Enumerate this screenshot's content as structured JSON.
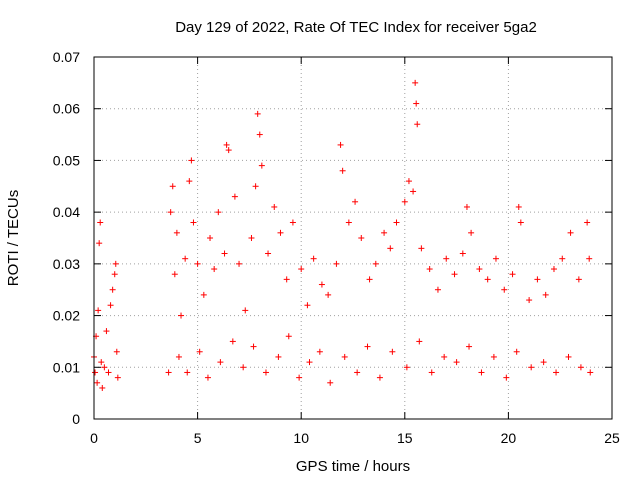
{
  "chart_data": {
    "type": "scatter",
    "title": "Day 129 of 2022, Rate Of TEC Index for receiver 5ga2",
    "xlabel": "GPS time / hours",
    "ylabel": "ROTI / TECUs",
    "xlim": [
      0,
      25
    ],
    "ylim": [
      0,
      0.07
    ],
    "x_ticks": [
      "0",
      "5",
      "10",
      "15",
      "20",
      "25"
    ],
    "y_ticks": [
      "0",
      "0.01",
      "0.02",
      "0.03",
      "0.04",
      "0.05",
      "0.06",
      "0.07"
    ],
    "grid": true,
    "marker": "+",
    "series_color": "#ff0000",
    "series": [
      {
        "data_gap_hours": [
          1.3,
          3.5
        ],
        "points": [
          [
            0.0,
            0.012
          ],
          [
            0.05,
            0.009
          ],
          [
            0.1,
            0.016
          ],
          [
            0.15,
            0.007
          ],
          [
            0.2,
            0.021
          ],
          [
            0.25,
            0.034
          ],
          [
            0.3,
            0.038
          ],
          [
            0.35,
            0.011
          ],
          [
            0.4,
            0.006
          ],
          [
            0.5,
            0.01
          ],
          [
            0.6,
            0.017
          ],
          [
            0.7,
            0.009
          ],
          [
            0.8,
            0.022
          ],
          [
            0.9,
            0.025
          ],
          [
            1.0,
            0.028
          ],
          [
            1.05,
            0.03
          ],
          [
            1.1,
            0.013
          ],
          [
            1.15,
            0.008
          ],
          [
            3.6,
            0.009
          ],
          [
            3.7,
            0.04
          ],
          [
            3.8,
            0.045
          ],
          [
            3.9,
            0.028
          ],
          [
            4.0,
            0.036
          ],
          [
            4.2,
            0.02
          ],
          [
            4.4,
            0.031
          ],
          [
            4.6,
            0.046
          ],
          [
            4.7,
            0.05
          ],
          [
            4.8,
            0.038
          ],
          [
            5.0,
            0.03
          ],
          [
            5.3,
            0.024
          ],
          [
            5.6,
            0.035
          ],
          [
            5.8,
            0.029
          ],
          [
            6.0,
            0.04
          ],
          [
            6.3,
            0.032
          ],
          [
            6.4,
            0.053
          ],
          [
            6.5,
            0.052
          ],
          [
            6.8,
            0.043
          ],
          [
            7.0,
            0.03
          ],
          [
            7.3,
            0.021
          ],
          [
            7.6,
            0.035
          ],
          [
            7.8,
            0.045
          ],
          [
            7.9,
            0.059
          ],
          [
            8.0,
            0.055
          ],
          [
            8.1,
            0.049
          ],
          [
            8.4,
            0.032
          ],
          [
            8.7,
            0.041
          ],
          [
            9.0,
            0.036
          ],
          [
            9.3,
            0.027
          ],
          [
            9.6,
            0.038
          ],
          [
            10.0,
            0.029
          ],
          [
            10.3,
            0.022
          ],
          [
            10.6,
            0.031
          ],
          [
            11.0,
            0.026
          ],
          [
            11.3,
            0.024
          ],
          [
            11.7,
            0.03
          ],
          [
            11.9,
            0.053
          ],
          [
            12.0,
            0.048
          ],
          [
            12.3,
            0.038
          ],
          [
            12.6,
            0.042
          ],
          [
            12.9,
            0.035
          ],
          [
            13.3,
            0.027
          ],
          [
            13.6,
            0.03
          ],
          [
            14.0,
            0.036
          ],
          [
            14.3,
            0.033
          ],
          [
            14.6,
            0.038
          ],
          [
            15.0,
            0.042
          ],
          [
            15.2,
            0.046
          ],
          [
            15.4,
            0.044
          ],
          [
            15.5,
            0.065
          ],
          [
            15.55,
            0.061
          ],
          [
            15.6,
            0.057
          ],
          [
            15.8,
            0.033
          ],
          [
            16.2,
            0.029
          ],
          [
            16.6,
            0.025
          ],
          [
            17.0,
            0.031
          ],
          [
            17.4,
            0.028
          ],
          [
            17.8,
            0.032
          ],
          [
            18.0,
            0.041
          ],
          [
            18.2,
            0.036
          ],
          [
            18.6,
            0.029
          ],
          [
            19.0,
            0.027
          ],
          [
            19.4,
            0.031
          ],
          [
            19.8,
            0.025
          ],
          [
            20.2,
            0.028
          ],
          [
            20.5,
            0.041
          ],
          [
            20.6,
            0.038
          ],
          [
            21.0,
            0.023
          ],
          [
            21.4,
            0.027
          ],
          [
            21.8,
            0.024
          ],
          [
            22.2,
            0.029
          ],
          [
            22.6,
            0.031
          ],
          [
            23.0,
            0.036
          ],
          [
            23.4,
            0.027
          ],
          [
            23.8,
            0.038
          ],
          [
            23.9,
            0.031
          ],
          [
            4.1,
            0.012
          ],
          [
            4.5,
            0.009
          ],
          [
            5.1,
            0.013
          ],
          [
            5.5,
            0.008
          ],
          [
            6.1,
            0.011
          ],
          [
            6.7,
            0.015
          ],
          [
            7.2,
            0.01
          ],
          [
            7.7,
            0.014
          ],
          [
            8.3,
            0.009
          ],
          [
            8.9,
            0.012
          ],
          [
            9.4,
            0.016
          ],
          [
            9.9,
            0.008
          ],
          [
            10.4,
            0.011
          ],
          [
            10.9,
            0.013
          ],
          [
            11.4,
            0.007
          ],
          [
            12.1,
            0.012
          ],
          [
            12.7,
            0.009
          ],
          [
            13.2,
            0.014
          ],
          [
            13.8,
            0.008
          ],
          [
            14.4,
            0.013
          ],
          [
            15.1,
            0.01
          ],
          [
            15.7,
            0.015
          ],
          [
            16.3,
            0.009
          ],
          [
            16.9,
            0.012
          ],
          [
            17.5,
            0.011
          ],
          [
            18.1,
            0.014
          ],
          [
            18.7,
            0.009
          ],
          [
            19.3,
            0.012
          ],
          [
            19.9,
            0.008
          ],
          [
            20.4,
            0.013
          ],
          [
            21.1,
            0.01
          ],
          [
            21.7,
            0.011
          ],
          [
            22.3,
            0.009
          ],
          [
            22.9,
            0.012
          ],
          [
            23.5,
            0.01
          ],
          [
            23.95,
            0.009
          ]
        ]
      }
    ]
  }
}
